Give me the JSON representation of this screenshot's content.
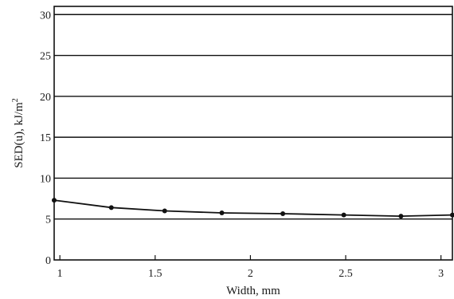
{
  "chart_data": {
    "type": "line",
    "title": "",
    "xlabel": "Width, mm",
    "ylabel": {
      "main": "SED(u), kJ/m",
      "superscript": "2"
    },
    "xlim": [
      0.97,
      3.06
    ],
    "ylim": [
      0,
      31
    ],
    "x_ticks": [
      1,
      1.5,
      2,
      2.5,
      3
    ],
    "x_tick_labels": [
      "1",
      "1.5",
      "2",
      "2.5",
      "3"
    ],
    "y_ticks": [
      0,
      5,
      10,
      15,
      20,
      25,
      30
    ],
    "y_tick_labels": [
      "0",
      "5",
      "10",
      "15",
      "20",
      "25",
      "30"
    ],
    "grid": {
      "horizontal": true,
      "vertical": false
    },
    "legend": "none",
    "series": [
      {
        "x": [
          0.97,
          1.27,
          1.55,
          1.85,
          2.17,
          2.49,
          2.79,
          3.06
        ],
        "y": [
          7.3,
          6.4,
          6.0,
          5.75,
          5.65,
          5.5,
          5.35,
          5.5
        ],
        "marker": "circle",
        "color": "#111111"
      }
    ]
  }
}
